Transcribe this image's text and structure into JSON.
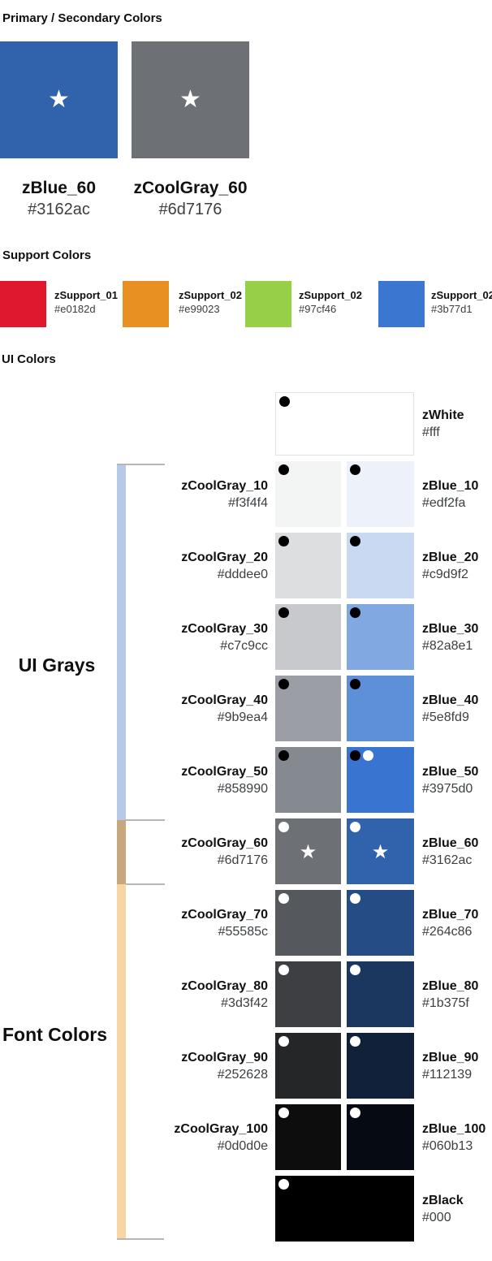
{
  "primary": {
    "title": "Primary / Secondary Colors",
    "items": [
      {
        "name": "zBlue_60",
        "hex": "#3162ac"
      },
      {
        "name": "zCoolGray_60",
        "hex": "#6d7176"
      }
    ]
  },
  "support": {
    "title": "Support Colors",
    "items": [
      {
        "name": "zSupport_01",
        "hex": "#e0182d"
      },
      {
        "name": "zSupport_02",
        "hex": "#e99023"
      },
      {
        "name": "zSupport_02",
        "hex": "#97cf46"
      },
      {
        "name": "zSupport_02",
        "hex": "#3b77d1"
      }
    ]
  },
  "ui": {
    "title": "UI Colors",
    "groups": {
      "grays_label": "UI Grays",
      "fonts_label": "Font Colors"
    },
    "bracket_colors": {
      "grays": "#b8c9e8",
      "overlap": "#c7a77d",
      "fonts": "#f6d7a4",
      "line": "#b6b6b6"
    },
    "rows": [
      {
        "kind": "full",
        "cell": {
          "name": "zWhite",
          "hex": "#fff",
          "dots": [
            "#000000"
          ],
          "border": true
        }
      },
      {
        "kind": "pair",
        "left": {
          "name": "zCoolGray_10",
          "hex": "#f3f4f4",
          "dots": [
            "#000000"
          ]
        },
        "right": {
          "name": "zBlue_10",
          "hex": "#edf2fa",
          "dots": [
            "#000000"
          ]
        }
      },
      {
        "kind": "pair",
        "left": {
          "name": "zCoolGray_20",
          "hex": "#dddee0",
          "dots": [
            "#000000"
          ]
        },
        "right": {
          "name": "zBlue_20",
          "hex": "#c9d9f2",
          "dots": [
            "#000000"
          ]
        }
      },
      {
        "kind": "pair",
        "left": {
          "name": "zCoolGray_30",
          "hex": "#c7c9cc",
          "dots": [
            "#000000"
          ]
        },
        "right": {
          "name": "zBlue_30",
          "hex": "#82a8e1",
          "dots": [
            "#000000"
          ]
        }
      },
      {
        "kind": "pair",
        "left": {
          "name": "zCoolGray_40",
          "hex": "#9b9ea4",
          "dots": [
            "#000000"
          ]
        },
        "right": {
          "name": "zBlue_40",
          "hex": "#5e8fd9",
          "dots": [
            "#000000"
          ]
        }
      },
      {
        "kind": "pair",
        "left": {
          "name": "zCoolGray_50",
          "hex": "#858990",
          "dots": [
            "#000000"
          ]
        },
        "right": {
          "name": "zBlue_50",
          "hex": "#3975d0",
          "dots": [
            "#000000",
            "#ffffff"
          ]
        }
      },
      {
        "kind": "pair",
        "left": {
          "name": "zCoolGray_60",
          "hex": "#6d7176",
          "dots": [
            "#ffffff"
          ],
          "star": true
        },
        "right": {
          "name": "zBlue_60",
          "hex": "#3162ac",
          "dots": [
            "#ffffff"
          ],
          "star": true
        }
      },
      {
        "kind": "pair",
        "left": {
          "name": "zCoolGray_70",
          "hex": "#55585c",
          "dots": [
            "#ffffff"
          ]
        },
        "right": {
          "name": "zBlue_70",
          "hex": "#264c86",
          "dots": [
            "#ffffff"
          ]
        }
      },
      {
        "kind": "pair",
        "left": {
          "name": "zCoolGray_80",
          "hex": "#3d3f42",
          "dots": [
            "#ffffff"
          ]
        },
        "right": {
          "name": "zBlue_80",
          "hex": "#1b375f",
          "dots": [
            "#ffffff"
          ]
        }
      },
      {
        "kind": "pair",
        "left": {
          "name": "zCoolGray_90",
          "hex": "#252628",
          "dots": [
            "#ffffff"
          ]
        },
        "right": {
          "name": "zBlue_90",
          "hex": "#112139",
          "dots": [
            "#ffffff"
          ]
        }
      },
      {
        "kind": "pair",
        "left": {
          "name": "zCoolGray_100",
          "hex": "#0d0d0e",
          "dots": [
            "#ffffff"
          ]
        },
        "right": {
          "name": "zBlue_100",
          "hex": "#060b13",
          "dots": [
            "#ffffff"
          ]
        }
      },
      {
        "kind": "full",
        "cell": {
          "name": "zBlack",
          "hex": "#000",
          "dots": [
            "#ffffff"
          ]
        }
      }
    ]
  }
}
